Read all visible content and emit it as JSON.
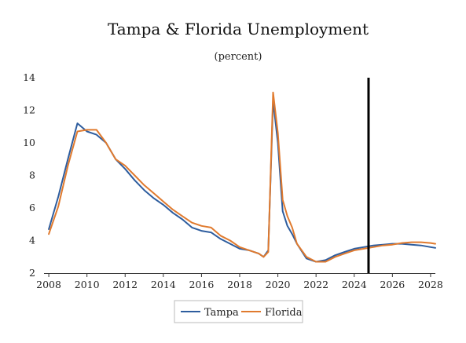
{
  "chart_data": {
    "type": "line",
    "title": "Tampa & Florida Unemployment",
    "subtitle": "(percent)",
    "xlabel": "",
    "ylabel": "",
    "xlim": [
      2007.75,
      2028.25
    ],
    "ylim": [
      2,
      14
    ],
    "x_ticks": [
      "2008",
      "2010",
      "2012",
      "2014",
      "2016",
      "2018",
      "2020",
      "2022",
      "2024",
      "2026",
      "2028"
    ],
    "y_ticks": [
      "2",
      "4",
      "6",
      "8",
      "10",
      "12",
      "14"
    ],
    "grid": false,
    "legend": "bottom-center",
    "forecast_marker_x": 2024.75,
    "colors": {
      "Tampa": "#2e5d9e",
      "Florida": "#e07a2e",
      "marker": "#000000"
    },
    "x": [
      2008.0,
      2008.5,
      2009.0,
      2009.5,
      2010.0,
      2010.5,
      2011.0,
      2011.5,
      2012.0,
      2012.5,
      2013.0,
      2013.5,
      2014.0,
      2014.5,
      2015.0,
      2015.5,
      2016.0,
      2016.5,
      2017.0,
      2017.5,
      2018.0,
      2018.5,
      2019.0,
      2019.25,
      2019.5,
      2019.75,
      2020.0,
      2020.25,
      2020.5,
      2020.75,
      2021.0,
      2021.5,
      2022.0,
      2022.5,
      2023.0,
      2023.5,
      2024.0,
      2024.5,
      2025.0,
      2025.5,
      2026.0,
      2026.5,
      2027.0,
      2027.5,
      2028.0,
      2028.25
    ],
    "series": [
      {
        "name": "Tampa",
        "values": [
          4.7,
          6.7,
          9.0,
          11.2,
          10.7,
          10.5,
          10.0,
          9.0,
          8.4,
          7.7,
          7.1,
          6.6,
          6.2,
          5.7,
          5.3,
          4.8,
          4.6,
          4.5,
          4.1,
          3.8,
          3.5,
          3.4,
          3.2,
          3.0,
          3.4,
          12.6,
          10.0,
          5.8,
          4.9,
          4.4,
          3.8,
          2.9,
          2.7,
          2.8,
          3.1,
          3.3,
          3.5,
          3.6,
          3.7,
          3.75,
          3.8,
          3.8,
          3.75,
          3.7,
          3.6,
          3.55
        ]
      },
      {
        "name": "Florida",
        "values": [
          4.4,
          6.1,
          8.6,
          10.7,
          10.8,
          10.8,
          10.0,
          9.0,
          8.6,
          8.0,
          7.4,
          6.9,
          6.4,
          5.9,
          5.5,
          5.1,
          4.9,
          4.8,
          4.3,
          4.0,
          3.6,
          3.4,
          3.2,
          3.0,
          3.3,
          13.1,
          10.6,
          6.5,
          5.5,
          4.8,
          3.8,
          3.0,
          2.7,
          2.7,
          3.0,
          3.2,
          3.4,
          3.5,
          3.6,
          3.7,
          3.75,
          3.85,
          3.9,
          3.9,
          3.85,
          3.8
        ]
      }
    ]
  }
}
